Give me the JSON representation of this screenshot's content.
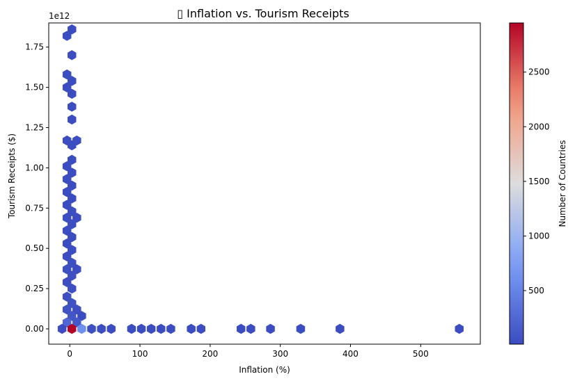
{
  "chart_data": {
    "type": "hexbin",
    "title": "▯ Inflation vs. Tourism Receipts",
    "xlabel": "Inflation (%)",
    "ylabel": "Tourism Receipts ($)",
    "y_offset_label": "1e12",
    "y_multiplier": 1000000000000.0,
    "xlim": [
      -30,
      585
    ],
    "ylim": [
      -0.095,
      1.9
    ],
    "xticks": [
      0,
      100,
      200,
      300,
      400,
      500
    ],
    "xtick_labels": [
      "0",
      "100",
      "200",
      "300",
      "400",
      "500"
    ],
    "yticks": [
      0,
      0.25,
      0.5,
      0.75,
      1.0,
      1.25,
      1.5,
      1.75
    ],
    "ytick_labels": [
      "0.00",
      "0.25",
      "0.50",
      "0.75",
      "1.00",
      "1.25",
      "1.50",
      "1.75"
    ],
    "colorbar": {
      "label": "Number of Countries",
      "range": [
        10,
        2950
      ],
      "ticks": [
        500,
        1000,
        1500,
        2000,
        2500
      ],
      "tick_labels": [
        "500",
        "1000",
        "1500",
        "2000",
        "2500"
      ],
      "colormap": "coolwarm"
    },
    "bins": [
      {
        "x": 3,
        "y": 1.86,
        "count": 20
      },
      {
        "x": -4,
        "y": 1.82,
        "count": 20
      },
      {
        "x": 3,
        "y": 1.7,
        "count": 20
      },
      {
        "x": -4,
        "y": 1.58,
        "count": 20
      },
      {
        "x": 3,
        "y": 1.54,
        "count": 20
      },
      {
        "x": -4,
        "y": 1.5,
        "count": 20
      },
      {
        "x": 3,
        "y": 1.46,
        "count": 20
      },
      {
        "x": 3,
        "y": 1.38,
        "count": 20
      },
      {
        "x": 3,
        "y": 1.3,
        "count": 20
      },
      {
        "x": -4,
        "y": 1.17,
        "count": 20
      },
      {
        "x": 10,
        "y": 1.17,
        "count": 20
      },
      {
        "x": 3,
        "y": 1.14,
        "count": 20
      },
      {
        "x": 3,
        "y": 1.05,
        "count": 20
      },
      {
        "x": -4,
        "y": 1.01,
        "count": 20
      },
      {
        "x": 3,
        "y": 0.97,
        "count": 20
      },
      {
        "x": -4,
        "y": 0.93,
        "count": 20
      },
      {
        "x": 3,
        "y": 0.89,
        "count": 20
      },
      {
        "x": -4,
        "y": 0.85,
        "count": 20
      },
      {
        "x": 3,
        "y": 0.81,
        "count": 20
      },
      {
        "x": -4,
        "y": 0.77,
        "count": 20
      },
      {
        "x": 3,
        "y": 0.73,
        "count": 30
      },
      {
        "x": -4,
        "y": 0.69,
        "count": 30
      },
      {
        "x": 10,
        "y": 0.69,
        "count": 20
      },
      {
        "x": 3,
        "y": 0.65,
        "count": 30
      },
      {
        "x": -4,
        "y": 0.61,
        "count": 20
      },
      {
        "x": 3,
        "y": 0.57,
        "count": 20
      },
      {
        "x": -4,
        "y": 0.53,
        "count": 20
      },
      {
        "x": 3,
        "y": 0.49,
        "count": 30
      },
      {
        "x": -4,
        "y": 0.45,
        "count": 30
      },
      {
        "x": 3,
        "y": 0.41,
        "count": 40
      },
      {
        "x": -4,
        "y": 0.37,
        "count": 40
      },
      {
        "x": 10,
        "y": 0.37,
        "count": 30
      },
      {
        "x": 3,
        "y": 0.33,
        "count": 40
      },
      {
        "x": -4,
        "y": 0.29,
        "count": 30
      },
      {
        "x": 3,
        "y": 0.25,
        "count": 40
      },
      {
        "x": -4,
        "y": 0.2,
        "count": 40
      },
      {
        "x": 3,
        "y": 0.16,
        "count": 60
      },
      {
        "x": -4,
        "y": 0.12,
        "count": 70
      },
      {
        "x": 10,
        "y": 0.12,
        "count": 40
      },
      {
        "x": 17,
        "y": 0.08,
        "count": 20
      },
      {
        "x": 3,
        "y": 0.08,
        "count": 100
      },
      {
        "x": -4,
        "y": 0.04,
        "count": 250
      },
      {
        "x": 10,
        "y": 0.04,
        "count": 120
      },
      {
        "x": -11,
        "y": 0.0,
        "count": 30
      },
      {
        "x": 3,
        "y": 0.0,
        "count": 2950
      },
      {
        "x": 17,
        "y": 0.0,
        "count": 600
      },
      {
        "x": 31,
        "y": 0.0,
        "count": 40
      },
      {
        "x": 45,
        "y": 0.0,
        "count": 30
      },
      {
        "x": 59,
        "y": 0.0,
        "count": 20
      },
      {
        "x": 88,
        "y": 0.0,
        "count": 20
      },
      {
        "x": 102,
        "y": 0.0,
        "count": 20
      },
      {
        "x": 116,
        "y": 0.0,
        "count": 20
      },
      {
        "x": 130,
        "y": 0.0,
        "count": 20
      },
      {
        "x": 144,
        "y": 0.0,
        "count": 20
      },
      {
        "x": 173,
        "y": 0.0,
        "count": 20
      },
      {
        "x": 187,
        "y": 0.0,
        "count": 20
      },
      {
        "x": 244,
        "y": 0.0,
        "count": 20
      },
      {
        "x": 258,
        "y": 0.0,
        "count": 20
      },
      {
        "x": 286,
        "y": 0.0,
        "count": 20
      },
      {
        "x": 329,
        "y": 0.0,
        "count": 20
      },
      {
        "x": 385,
        "y": 0.0,
        "count": 20
      },
      {
        "x": 555,
        "y": 0.0,
        "count": 20
      }
    ]
  }
}
